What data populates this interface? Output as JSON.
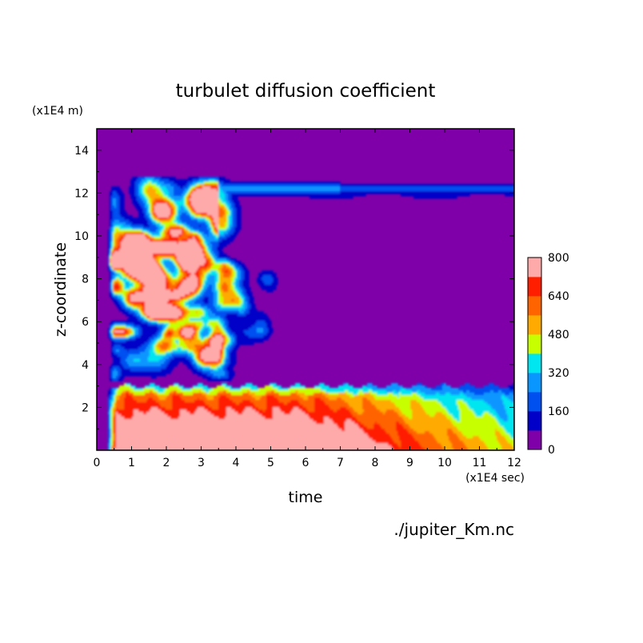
{
  "chart_data": {
    "type": "heatmap",
    "title": "turbulet diffusion coefficient",
    "xlabel": "time",
    "ylabel": "z-coordinate",
    "x_unit": "(x1E4 sec)",
    "y_unit": "(x1E4 m)",
    "source_label": "./jupiter_Km.nc",
    "xlim": [
      0,
      12
    ],
    "ylim": [
      0,
      15
    ],
    "x_ticks": [
      "0",
      "1",
      "2",
      "3",
      "4",
      "5",
      "6",
      "7",
      "8",
      "9",
      "10",
      "11",
      "12"
    ],
    "y_ticks": [
      "2",
      "4",
      "6",
      "8",
      "10",
      "12",
      "14"
    ],
    "colorbar": {
      "levels": [
        0,
        80,
        160,
        240,
        320,
        400,
        480,
        560,
        640,
        720,
        800
      ],
      "tick_labels": [
        "0",
        "160",
        "320",
        "480",
        "640",
        "800"
      ],
      "colors": [
        "#7f00a8",
        "#0000c8",
        "#0050f0",
        "#0a96ff",
        "#00e6f0",
        "#c8ff00",
        "#ffaa00",
        "#ff6400",
        "#ff1e00",
        "#ffaaaa"
      ]
    },
    "regions": [
      {
        "name": "background",
        "value": 40
      },
      {
        "name": "upper boundary layer",
        "y": 12.2,
        "x_range": [
          3.6,
          12
        ],
        "value": 200
      },
      {
        "name": "upper turbulent region",
        "x_range": [
          0.3,
          5.2
        ],
        "y_range": [
          3.2,
          12.7
        ],
        "value_range": [
          80,
          800
        ]
      },
      {
        "name": "lower boundary layer",
        "y_range": [
          0,
          3.1
        ],
        "x_range": [
          0.3,
          12
        ],
        "value_range": [
          200,
          800
        ]
      }
    ]
  }
}
